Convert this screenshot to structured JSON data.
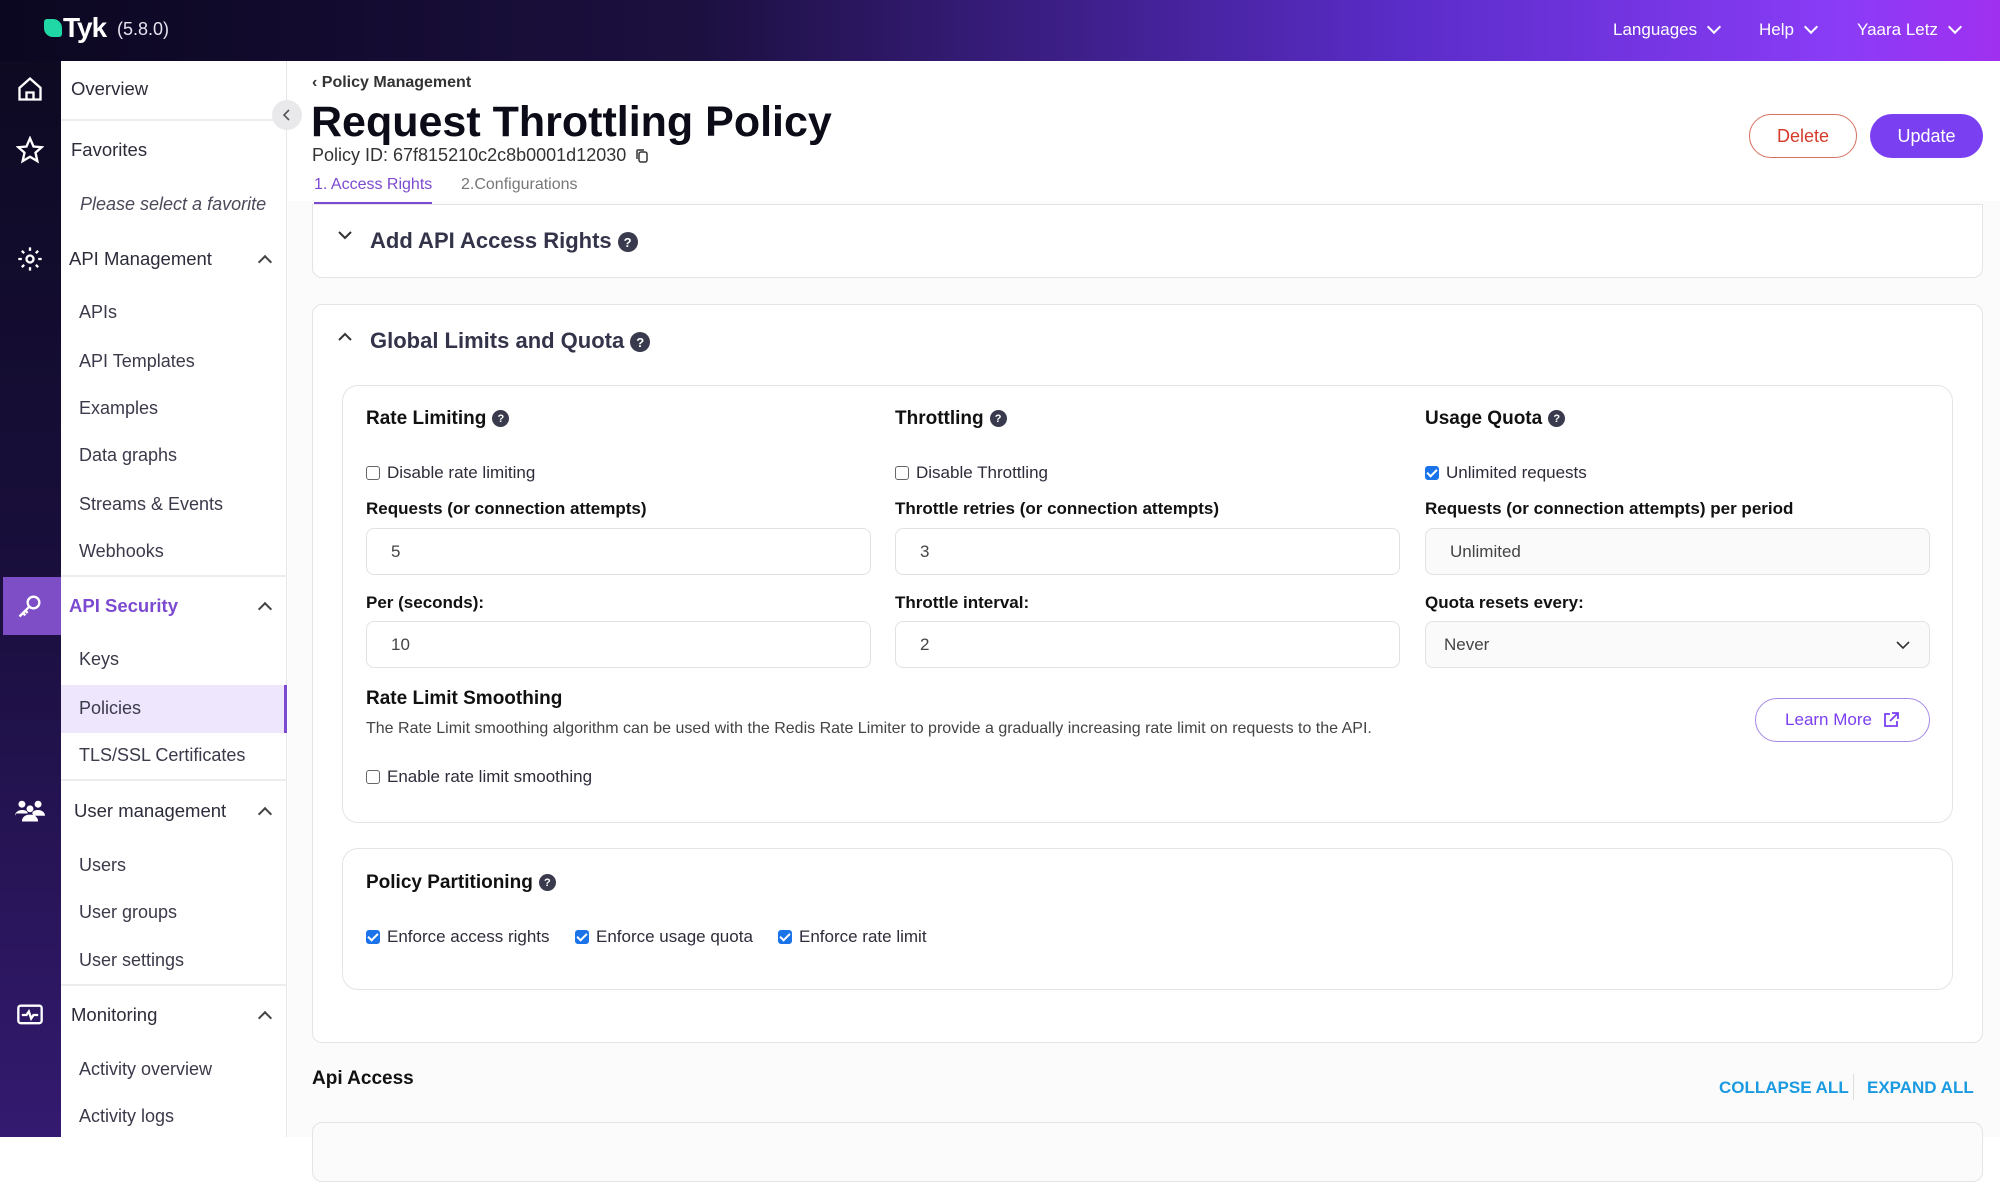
{
  "header": {
    "brand": "Tyk",
    "version": "(5.8.0)",
    "nav": [
      "Languages",
      "Help",
      "Yaara Letz"
    ]
  },
  "sidebar": {
    "overview": "Overview",
    "favorites": "Favorites",
    "favorites_empty": "Please select a favorite",
    "api_management": {
      "label": "API Management",
      "items": [
        "APIs",
        "API Templates",
        "Examples",
        "Data graphs",
        "Streams & Events",
        "Webhooks"
      ]
    },
    "api_security": {
      "label": "API Security",
      "items": [
        "Keys",
        "Policies",
        "TLS/SSL Certificates"
      ]
    },
    "user_management": {
      "label": "User management",
      "items": [
        "Users",
        "User groups",
        "User settings"
      ]
    },
    "monitoring": {
      "label": "Monitoring",
      "items": [
        "Activity overview",
        "Activity logs"
      ]
    },
    "active_item": "Policies"
  },
  "page": {
    "breadcrumb": "Policy Management",
    "title": "Request Throttling Policy",
    "policy_id": "Policy ID: 67f815210c2c8b0001d12030",
    "tabs": [
      "1. Access Rights",
      "2.Configurations"
    ],
    "delete": "Delete",
    "update": "Update"
  },
  "add_access": {
    "title": "Add API Access Rights"
  },
  "global_limits": {
    "title": "Global Limits and Quota",
    "rate_limiting": {
      "title": "Rate Limiting",
      "checkbox": "Disable rate limiting",
      "checked": false,
      "requests_label": "Requests (or connection attempts)",
      "requests_value": "5",
      "per_label": "Per (seconds):",
      "per_value": "10"
    },
    "throttling": {
      "title": "Throttling",
      "checkbox": "Disable Throttling",
      "checked": false,
      "retries_label": "Throttle retries (or connection attempts)",
      "retries_value": "3",
      "interval_label": "Throttle interval:",
      "interval_value": "2"
    },
    "usage_quota": {
      "title": "Usage Quota",
      "checkbox": "Unlimited requests",
      "checked": true,
      "requests_label": "Requests (or connection attempts) per period",
      "requests_value": "Unlimited",
      "resets_label": "Quota resets every:",
      "resets_value": "Never"
    },
    "smoothing": {
      "title": "Rate Limit Smoothing",
      "description": "The Rate Limit smoothing algorithm can be used with the Redis Rate Limiter to provide a gradually increasing rate limit on requests to the API.",
      "learn_more": "Learn More",
      "checkbox": "Enable rate limit smoothing",
      "checked": false
    },
    "partitioning": {
      "title": "Policy Partitioning",
      "options": [
        "Enforce access rights",
        "Enforce usage quota",
        "Enforce rate limit"
      ],
      "checked": [
        true,
        true,
        true
      ]
    }
  },
  "api_access": {
    "title": "Api Access",
    "collapse_all": "COLLAPSE ALL",
    "expand_all": "EXPAND ALL"
  },
  "colors": {
    "accent": "#7b3ff2",
    "delete": "#d53a2a",
    "link": "#1a9ae0",
    "logo": "#1fd8a6"
  }
}
